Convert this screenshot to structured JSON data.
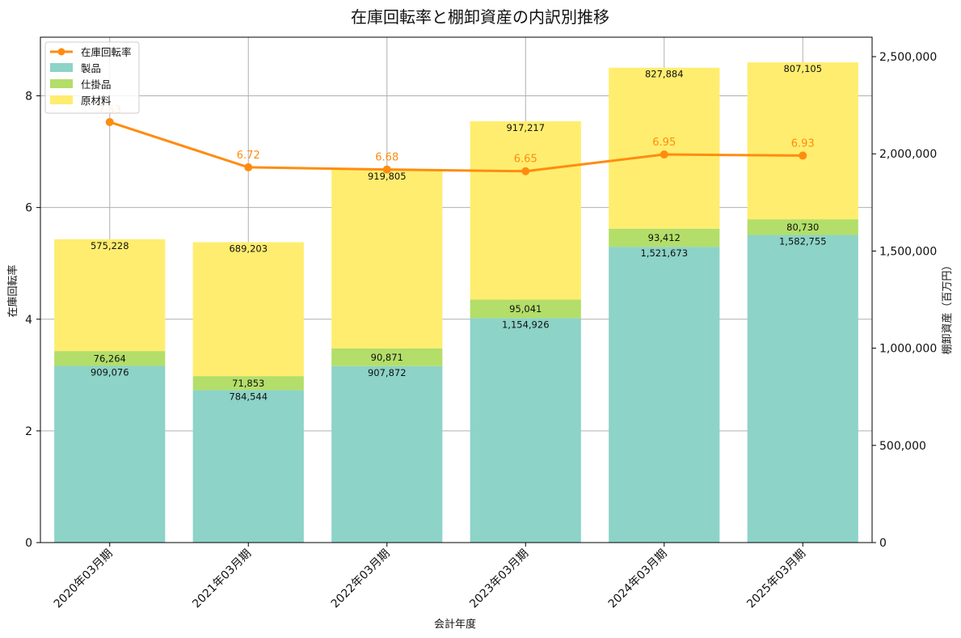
{
  "chart_data": {
    "type": "bar",
    "title": "在庫回転率と棚卸資産の内訳別推移",
    "xlabel": "会計年度",
    "ylabel_left": "在庫回転率",
    "ylabel_right": "棚卸資産（百万円）",
    "categories": [
      "2020年03月期",
      "2021年03月期",
      "2022年03月期",
      "2023年03月期",
      "2024年03月期",
      "2025年03月期"
    ],
    "stack_series": [
      {
        "name": "製品",
        "color": "#8dd3c7",
        "values": [
          909076,
          784544,
          907872,
          1154926,
          1521673,
          1582755
        ],
        "labels": [
          "909,076",
          "784,544",
          "907,872",
          "1,154,926",
          "1,521,673",
          "1,582,755"
        ]
      },
      {
        "name": "仕掛品",
        "color": "#b3de69",
        "values": [
          76264,
          71853,
          90871,
          95041,
          93412,
          80730
        ],
        "labels": [
          "76,264",
          "71,853",
          "90,871",
          "95,041",
          "93,412",
          "80,730"
        ]
      },
      {
        "name": "原材料",
        "color": "#ffed6f",
        "values": [
          575228,
          689203,
          919805,
          917217,
          827884,
          807105
        ],
        "labels": [
          "575,228",
          "689,203",
          "919,805",
          "917,217",
          "827,884",
          "807,105"
        ]
      }
    ],
    "line_series": {
      "name": "在庫回転率",
      "color": "#ff8c0f",
      "values": [
        7.53,
        6.72,
        6.68,
        6.65,
        6.95,
        6.93
      ],
      "labels": [
        "7.53",
        "6.72",
        "6.68",
        "6.65",
        "6.95",
        "6.93"
      ]
    },
    "ylim_left": [
      0,
      9.05
    ],
    "yticks_left": [
      "0",
      "2",
      "4",
      "6",
      "8"
    ],
    "ylim_right": [
      0,
      2600000
    ],
    "yticks_right": [
      "0",
      "500,000",
      "1,000,000",
      "1,500,000",
      "2,000,000",
      "2,500,000"
    ],
    "grid": true,
    "legend_position": "top-left",
    "legend": [
      "在庫回転率",
      "製品",
      "仕掛品",
      "原材料"
    ]
  }
}
